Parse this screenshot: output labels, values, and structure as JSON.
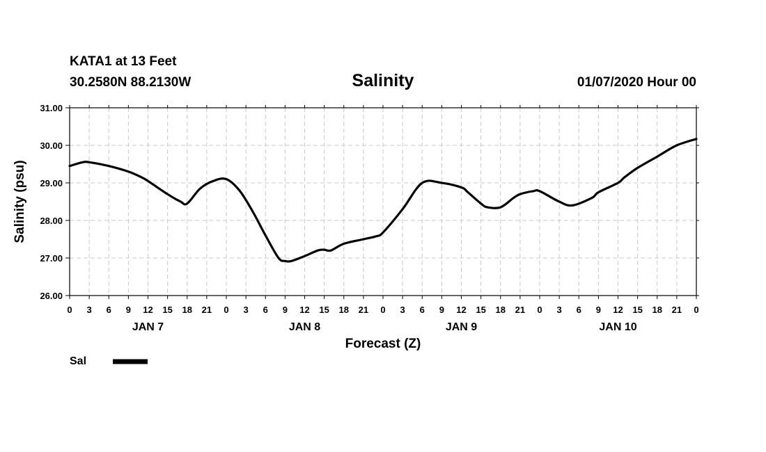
{
  "header": {
    "station": "KATA1 at 13 Feet",
    "coords": "30.2580N 88.2130W",
    "title": "Salinity",
    "run": "01/07/2020 Hour 00"
  },
  "legend": {
    "label": "Sal",
    "color": "#000000"
  },
  "chart_data": {
    "type": "line",
    "title": "Salinity",
    "xlabel": "Forecast (Z)",
    "ylabel": "Salinity (psu)",
    "ylim": [
      26,
      31
    ],
    "yticks": [
      "26.00",
      "27.00",
      "28.00",
      "29.00",
      "30.00",
      "31.00"
    ],
    "xlim_hours": [
      0,
      96
    ],
    "xtick_labels": [
      "0",
      "3",
      "6",
      "9",
      "12",
      "15",
      "18",
      "21",
      "0",
      "3",
      "6",
      "9",
      "12",
      "15",
      "18",
      "21",
      "0",
      "3",
      "6",
      "9",
      "12",
      "15",
      "18",
      "21",
      "0",
      "3",
      "6",
      "9",
      "12",
      "15",
      "18",
      "21",
      "0"
    ],
    "day_labels": [
      {
        "label": "JAN 7",
        "hour": 12
      },
      {
        "label": "JAN 8",
        "hour": 36
      },
      {
        "label": "JAN 9",
        "hour": 60
      },
      {
        "label": "JAN 10",
        "hour": 84
      }
    ],
    "grid": true,
    "legend_position": "bottom-left",
    "series": [
      {
        "name": "Sal",
        "color": "#000000",
        "x_hours": [
          0,
          2,
          3,
          6,
          9,
          11,
          12,
          15,
          17,
          18,
          20,
          22,
          24,
          26,
          28,
          30,
          32,
          33,
          34,
          36,
          38,
          39,
          40,
          42,
          45,
          47,
          48,
          51,
          54,
          57,
          60,
          61,
          63,
          64,
          66,
          68,
          69,
          71,
          72,
          75,
          77,
          80,
          81,
          84,
          85,
          87,
          90,
          93,
          96
        ],
        "values": [
          29.45,
          29.55,
          29.55,
          29.45,
          29.3,
          29.15,
          29.05,
          28.7,
          28.5,
          28.45,
          28.85,
          29.05,
          29.1,
          28.8,
          28.25,
          27.6,
          27.0,
          26.92,
          26.92,
          27.05,
          27.2,
          27.22,
          27.2,
          27.38,
          27.5,
          27.58,
          27.68,
          28.3,
          29.0,
          29.0,
          28.88,
          28.75,
          28.45,
          28.35,
          28.35,
          28.6,
          28.7,
          28.78,
          28.78,
          28.5,
          28.4,
          28.6,
          28.75,
          29.0,
          29.15,
          29.4,
          29.7,
          30.0,
          30.17
        ]
      }
    ]
  }
}
